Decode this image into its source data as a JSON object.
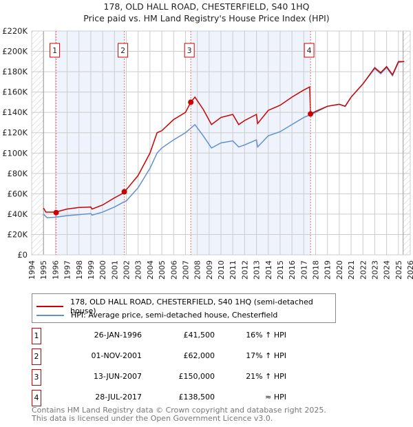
{
  "title_line1": "178, OLD HALL ROAD, CHESTERFIELD, S40 1HQ",
  "title_line2": "Price paid vs. HM Land Registry's House Price Index (HPI)",
  "colors": {
    "property": "#cc0000",
    "hpi": "#6090d0",
    "shade": "#eef3fc"
  },
  "chart_data": {
    "type": "line",
    "xlim": [
      1994,
      2026
    ],
    "ylim": [
      0,
      220000
    ],
    "yticks": [
      {
        "v": 0,
        "label": "£0"
      },
      {
        "v": 20000,
        "label": "£20K"
      },
      {
        "v": 40000,
        "label": "£40K"
      },
      {
        "v": 60000,
        "label": "£60K"
      },
      {
        "v": 80000,
        "label": "£80K"
      },
      {
        "v": 100000,
        "label": "£100K"
      },
      {
        "v": 120000,
        "label": "£120K"
      },
      {
        "v": 140000,
        "label": "£140K"
      },
      {
        "v": 160000,
        "label": "£160K"
      },
      {
        "v": 180000,
        "label": "£180K"
      },
      {
        "v": 200000,
        "label": "£200K"
      },
      {
        "v": 220000,
        "label": "£220K"
      }
    ],
    "xticks": [
      "1994",
      "1995",
      "1996",
      "1997",
      "1998",
      "1999",
      "2000",
      "2001",
      "2002",
      "2003",
      "2004",
      "2005",
      "2006",
      "2007",
      "2008",
      "2009",
      "2010",
      "2011",
      "2012",
      "2013",
      "2014",
      "2015",
      "2016",
      "2017",
      "2018",
      "2019",
      "2020",
      "2021",
      "2022",
      "2023",
      "2024",
      "2025",
      "2026"
    ],
    "series": [
      {
        "name": "178, OLD HALL ROAD, CHESTERFIELD, S40 1HQ (semi-detached house)",
        "x": [
          1995,
          1995.2,
          1996,
          1997,
          1998,
          1999,
          1999.1,
          2000,
          2001,
          2001.8,
          2002,
          2003,
          2004,
          2004.6,
          2005,
          2006,
          2007,
          2007.45,
          2007.8,
          2008.5,
          2009.2,
          2010,
          2011,
          2011.5,
          2012,
          2013,
          2013.1,
          2014,
          2015,
          2016,
          2017,
          2017.5,
          2017.57,
          2018,
          2019,
          2020,
          2020.5,
          2021,
          2022,
          2023,
          2023.5,
          2024,
          2024.5,
          2025,
          2025.5
        ],
        "y": [
          46000,
          42000,
          42000,
          45000,
          46500,
          47000,
          45000,
          49000,
          56000,
          61000,
          64000,
          78000,
          100000,
          120000,
          122000,
          133000,
          140000,
          150000,
          155000,
          143000,
          128000,
          135000,
          138000,
          128000,
          132000,
          138000,
          129000,
          142000,
          147000,
          155000,
          162000,
          165000,
          138500,
          141000,
          146000,
          148000,
          146000,
          155000,
          168000,
          184000,
          179000,
          185000,
          177000,
          190000,
          190000
        ]
      },
      {
        "name": "HPI: Average price, semi-detached house, Chesterfield",
        "x": [
          1995,
          1995.3,
          1996,
          1997,
          1998,
          1999,
          1999.1,
          2000,
          2001,
          2001.8,
          2002,
          2003,
          2004,
          2004.6,
          2005,
          2006,
          2007,
          2007.8,
          2008.5,
          2009.2,
          2010,
          2011,
          2011.5,
          2012,
          2013,
          2013.1,
          2014,
          2015,
          2016,
          2017,
          2017.6,
          2018,
          2019,
          2020,
          2020.5,
          2021,
          2022,
          2023,
          2023.5,
          2024,
          2024.5,
          2025,
          2025.5
        ],
        "y": [
          40000,
          36500,
          37000,
          38500,
          39500,
          40500,
          39000,
          42000,
          47000,
          52000,
          53000,
          66000,
          85000,
          100000,
          105000,
          113000,
          120000,
          128000,
          117000,
          105000,
          110000,
          112000,
          106000,
          108000,
          113000,
          106000,
          117000,
          121000,
          128000,
          135000,
          138000,
          140000,
          146000,
          148000,
          146000,
          155000,
          168000,
          183000,
          178000,
          184000,
          176000,
          189000,
          190000
        ]
      }
    ],
    "sales": [
      {
        "n": "1",
        "x": 1996.07,
        "date": "26-JAN-1996",
        "price": 41500,
        "price_label": "£41,500",
        "rel": "16% ↑ HPI"
      },
      {
        "n": "2",
        "x": 2001.83,
        "date": "01-NOV-2001",
        "price": 62000,
        "price_label": "£62,000",
        "rel": "17% ↑ HPI"
      },
      {
        "n": "3",
        "x": 2007.45,
        "date": "13-JUN-2007",
        "price": 150000,
        "price_label": "£150,000",
        "rel": "21% ↑ HPI"
      },
      {
        "n": "4",
        "x": 2017.57,
        "date": "28-JUL-2017",
        "price": 138500,
        "price_label": "£138,500",
        "rel": "≈ HPI"
      }
    ]
  },
  "legend": {
    "property": "178, OLD HALL ROAD, CHESTERFIELD, S40 1HQ (semi-detached house)",
    "hpi": "HPI: Average price, semi-detached house, Chesterfield"
  },
  "footer": {
    "line1": "Contains HM Land Registry data © Crown copyright and database right 2025.",
    "line2": "This data is licensed under the Open Government Licence v3.0."
  }
}
